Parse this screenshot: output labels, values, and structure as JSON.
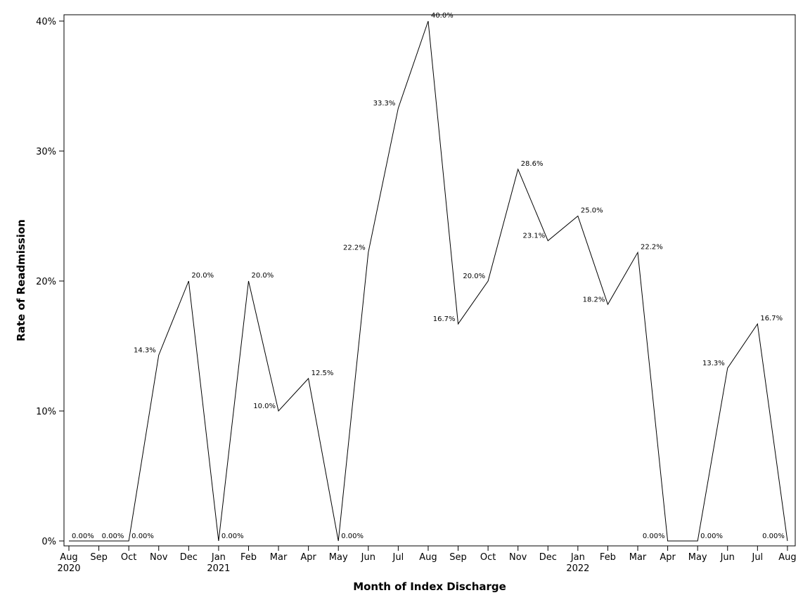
{
  "chart_data": {
    "type": "line",
    "xlabel": "Month of Index Discharge",
    "ylabel": "Rate of Readmission",
    "ylim": [
      0,
      40
    ],
    "y_ticks": [
      "0%",
      "10%",
      "20%",
      "30%",
      "40%"
    ],
    "y_tick_values": [
      0,
      10,
      20,
      30,
      40
    ],
    "grid": false,
    "legend": "none",
    "line_color": "#000000",
    "x": [
      "Aug 2020",
      "Sep 2020",
      "Oct 2020",
      "Nov 2020",
      "Dec 2020",
      "Jan 2021",
      "Feb 2021",
      "Mar 2021",
      "Apr 2021",
      "May 2021",
      "Jun 2021",
      "Jul 2021",
      "Aug 2021",
      "Sep 2021",
      "Oct 2021",
      "Nov 2021",
      "Dec 2021",
      "Jan 2022",
      "Feb 2022",
      "Mar 2022",
      "Apr 2022",
      "May 2022",
      "Jun 2022",
      "Jul 2022",
      "Aug 2022"
    ],
    "x_tick_labels": [
      "Aug",
      "Sep",
      "Oct",
      "Nov",
      "Dec",
      "Jan",
      "Feb",
      "Mar",
      "Apr",
      "May",
      "Jun",
      "Jul",
      "Aug",
      "Sep",
      "Oct",
      "Nov",
      "Dec",
      "Jan",
      "Feb",
      "Mar",
      "Apr",
      "May",
      "Jun",
      "Jul",
      "Aug"
    ],
    "x_year_labels": [
      {
        "index": 0,
        "label": "2020"
      },
      {
        "index": 5,
        "label": "2021"
      },
      {
        "index": 17,
        "label": "2022"
      }
    ],
    "values": [
      0,
      0,
      0,
      14.3,
      20.0,
      0,
      20.0,
      10.0,
      12.5,
      0,
      22.2,
      33.3,
      40.0,
      16.7,
      20.0,
      28.6,
      23.1,
      25.0,
      18.2,
      22.2,
      0,
      0,
      13.3,
      16.7,
      0
    ],
    "data_labels": [
      "0.00%",
      "0.00%",
      "0.00%",
      "14.3%",
      "20.0%",
      "0.00%",
      "20.0%",
      "10.0%",
      "12.5%",
      "0.00%",
      "22.2%",
      "33.3%",
      "40.0%",
      "16.7%",
      "20.0%",
      "28.6%",
      "23.1%",
      "25.0%",
      "18.2%",
      "22.2%",
      "0.00%",
      "0.00%",
      "13.3%",
      "16.7%",
      "0.00%"
    ]
  }
}
